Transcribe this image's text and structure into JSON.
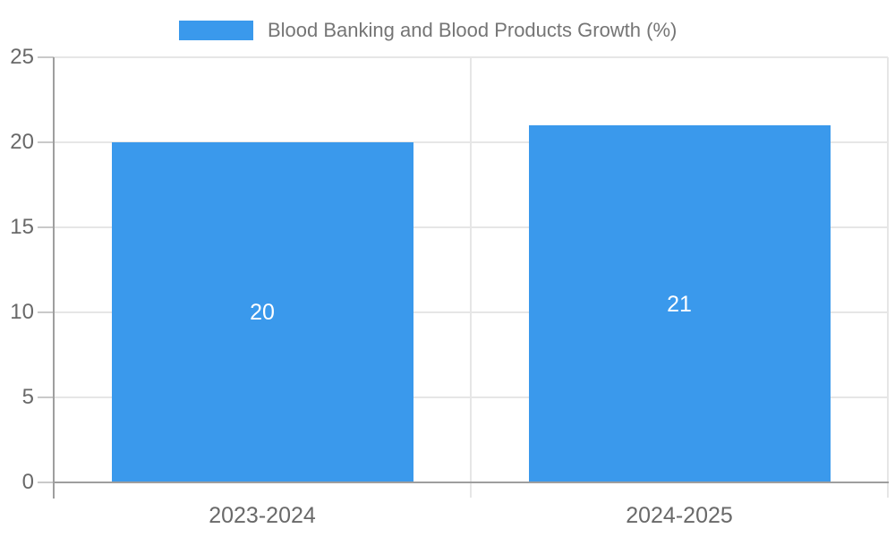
{
  "chart_data": {
    "type": "bar",
    "legend": "Blood Banking and Blood Products Growth (%)",
    "legend_position": "top",
    "categories": [
      "2023-2024",
      "2024-2025"
    ],
    "values": [
      20,
      21
    ],
    "value_labels": [
      "20",
      "21"
    ],
    "title": "",
    "xlabel": "",
    "ylabel": "",
    "ylim": [
      0,
      25
    ],
    "yticks": [
      0,
      5,
      10,
      15,
      20,
      25
    ],
    "grid": true
  },
  "colors": {
    "bar": "#3A99EC",
    "grid": "#e6e6e6",
    "axis": "#9e9e9e",
    "tick": "#c9c9c9",
    "axis_label": "#696969",
    "legend_text": "#757575",
    "value_label": "#ffffff",
    "background": "#ffffff"
  }
}
